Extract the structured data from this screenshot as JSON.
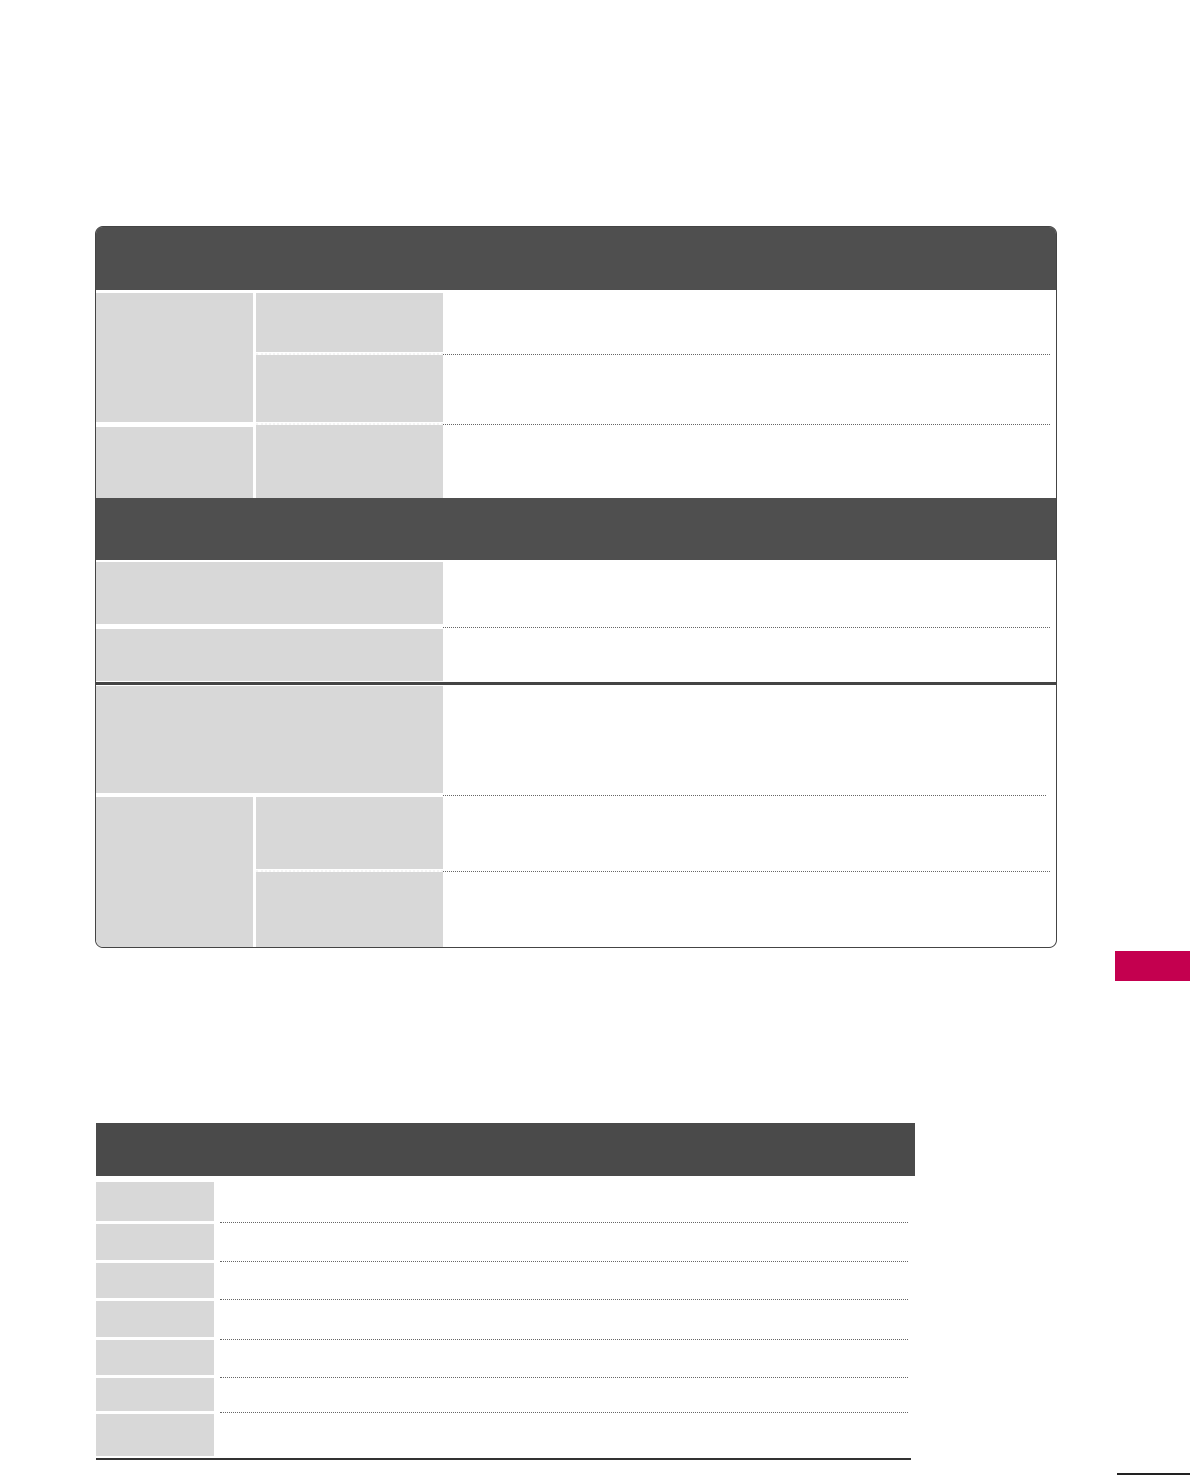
{
  "colors": {
    "header": "#4f4f4f",
    "label_cell": "#d8d8d8",
    "section_tab": "#c4004f"
  }
}
